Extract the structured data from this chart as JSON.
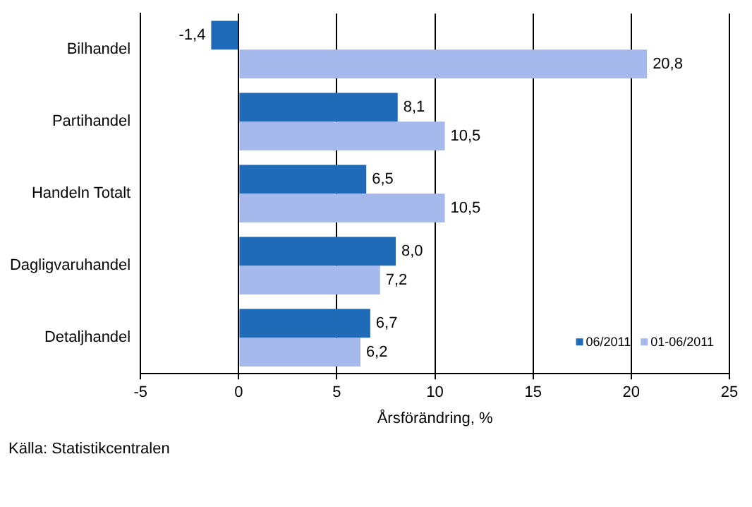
{
  "chart_data": {
    "type": "bar",
    "orientation": "horizontal",
    "xlabel": "Årsförändring, %",
    "categories": [
      "Bilhandel",
      "Partihandel",
      "Handeln Totalt",
      "Dagligvaruhandel",
      "Detaljhandel"
    ],
    "series": [
      {
        "name": "06/2011",
        "color": "#1f6bb8",
        "values": [
          -1.4,
          8.1,
          6.5,
          8.0,
          6.7
        ],
        "value_labels": [
          "-1,4",
          "8,1",
          "6,5",
          "8,0",
          "6,7"
        ]
      },
      {
        "name": "01-06/2011",
        "color": "#a6b9ec",
        "values": [
          20.8,
          10.5,
          10.5,
          7.2,
          6.2
        ],
        "value_labels": [
          "20,8",
          "10,5",
          "10,5",
          "7,2",
          "6,2"
        ]
      }
    ],
    "xlim": [
      -5,
      25
    ],
    "xticks": [
      -5,
      0,
      5,
      10,
      15,
      20,
      25
    ],
    "grid": "x",
    "legend": "bottom right",
    "annotations": [
      "Källa: Statistikcentralen"
    ]
  }
}
